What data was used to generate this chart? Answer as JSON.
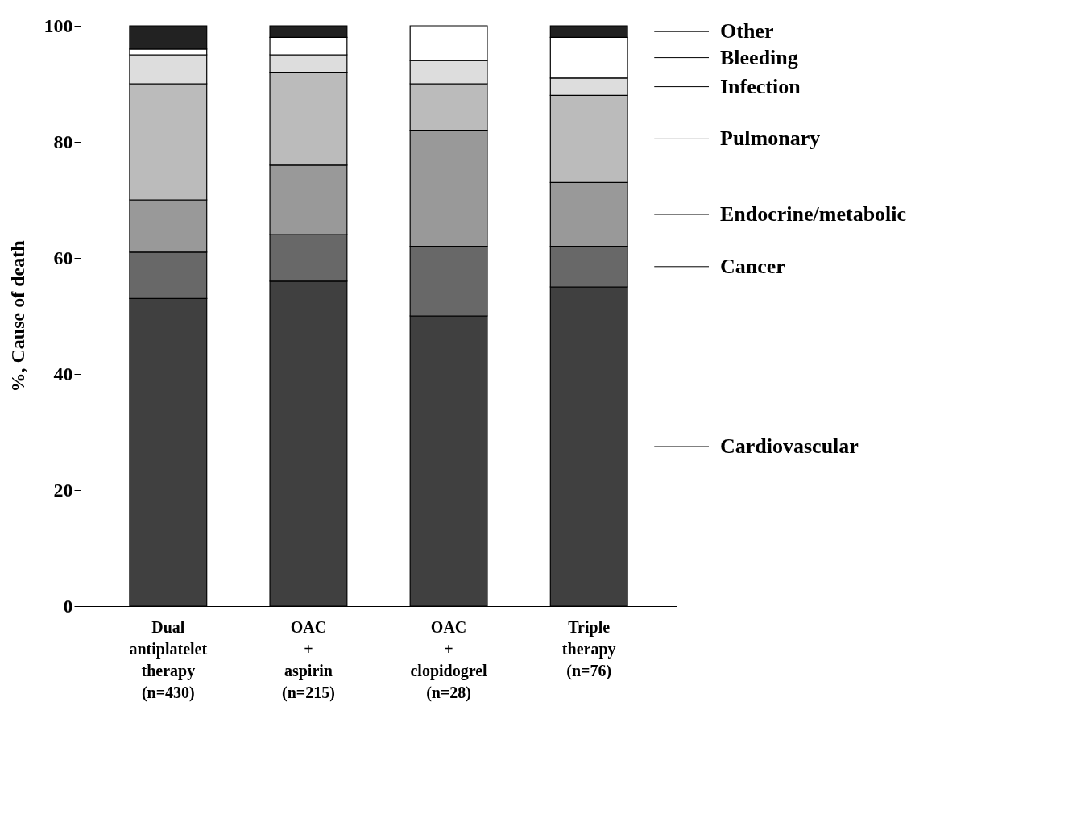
{
  "chart_data": {
    "type": "bar",
    "stacked": true,
    "ylabel": "%, Cause of death",
    "categories": [
      "Dual\nantiplatelet\ntherapy\n(n=430)",
      "OAC\n+\naspirin\n(n=215)",
      "OAC\n+\nclopidogrel\n(n=28)",
      "Triple\ntherapy\n(n=76)"
    ],
    "series": [
      {
        "name": "Cardiovascular",
        "color": "#404040",
        "values": [
          53,
          56,
          50,
          55
        ]
      },
      {
        "name": "Cancer",
        "color": "#686868",
        "values": [
          8,
          8,
          12,
          7
        ]
      },
      {
        "name": "Endocrine/metabolic",
        "color": "#999999",
        "values": [
          9,
          12,
          20,
          11
        ]
      },
      {
        "name": "Pulmonary",
        "color": "#bbbbbb",
        "values": [
          20,
          16,
          8,
          15
        ]
      },
      {
        "name": "Infection",
        "color": "#dddddd",
        "values": [
          5,
          3,
          4,
          3
        ]
      },
      {
        "name": "Bleeding",
        "color": "#ffffff",
        "values": [
          1,
          3,
          6,
          7
        ]
      },
      {
        "name": "Other",
        "color": "#222222",
        "values": [
          4,
          2,
          null,
          2
        ]
      }
    ],
    "ylim": [
      0,
      100
    ],
    "yticks": [
      0,
      20,
      40,
      60,
      80,
      100
    ],
    "grid": false,
    "legend": "right"
  }
}
